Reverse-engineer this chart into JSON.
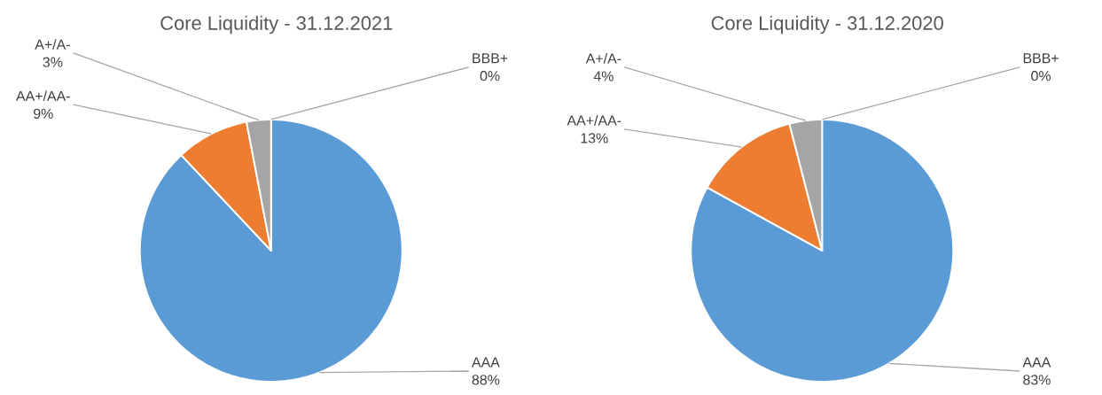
{
  "chart_data": [
    {
      "type": "pie",
      "title": "Core Liquidity - 31.12.2021",
      "categories": [
        "AAA",
        "AA+/AA-",
        "A+/A-",
        "BBB+"
      ],
      "values": [
        88,
        9,
        3,
        0
      ],
      "value_labels": [
        "88%",
        "9%",
        "3%",
        "0%"
      ],
      "colors": [
        "#5b9bd5",
        "#ed7d31",
        "#a5a5a5",
        "#ffc000"
      ]
    },
    {
      "type": "pie",
      "title": "Core Liquidity - 31.12.2020",
      "categories": [
        "AAA",
        "AA+/AA-",
        "A+/A-",
        "BBB+"
      ],
      "values": [
        83,
        13,
        4,
        0
      ],
      "value_labels": [
        "83%",
        "13%",
        "4%",
        "0%"
      ],
      "colors": [
        "#5b9bd5",
        "#ed7d31",
        "#a5a5a5",
        "#ffc000"
      ]
    }
  ]
}
